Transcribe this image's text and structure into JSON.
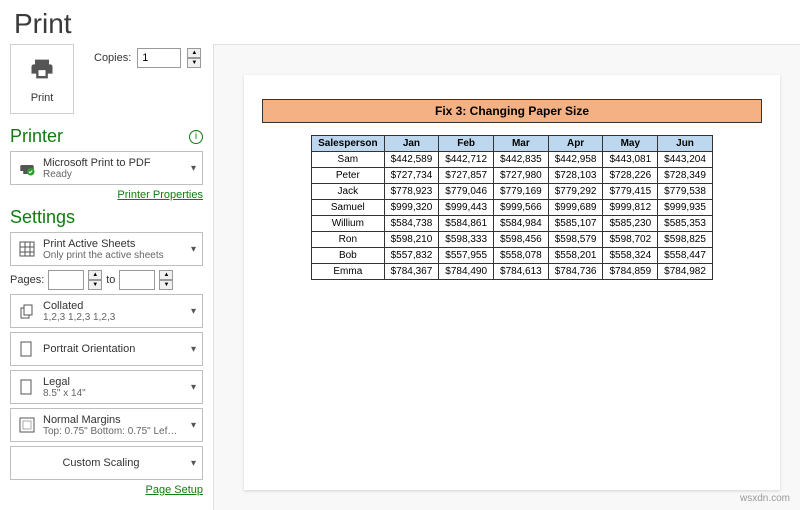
{
  "header": {
    "title": "Print"
  },
  "printBtn": {
    "label": "Print"
  },
  "copies": {
    "label": "Copies:",
    "value": "1"
  },
  "printer": {
    "heading": "Printer",
    "name": "Microsoft Print to PDF",
    "status": "Ready",
    "propsLink": "Printer Properties"
  },
  "settings": {
    "heading": "Settings",
    "sheets": {
      "title": "Print Active Sheets",
      "sub": "Only print the active sheets"
    },
    "pages": {
      "label": "Pages:",
      "to": "to"
    },
    "collated": {
      "title": "Collated",
      "sub": "1,2,3   1,2,3   1,2,3"
    },
    "orientation": {
      "title": "Portrait Orientation"
    },
    "paper": {
      "title": "Legal",
      "sub": "8.5\" x 14\""
    },
    "margins": {
      "title": "Normal Margins",
      "sub": "Top: 0.75\" Bottom: 0.75\" Lef…"
    },
    "scaling": {
      "title": "Custom Scaling"
    },
    "setupLink": "Page Setup"
  },
  "preview": {
    "title": "Fix 3: Changing Paper Size",
    "columns": [
      "Salesperson",
      "Jan",
      "Feb",
      "Mar",
      "Apr",
      "May",
      "Jun"
    ],
    "rows": [
      [
        "Sam",
        "$442,589",
        "$442,712",
        "$442,835",
        "$442,958",
        "$443,081",
        "$443,204"
      ],
      [
        "Peter",
        "$727,734",
        "$727,857",
        "$727,980",
        "$728,103",
        "$728,226",
        "$728,349"
      ],
      [
        "Jack",
        "$778,923",
        "$779,046",
        "$779,169",
        "$779,292",
        "$779,415",
        "$779,538"
      ],
      [
        "Samuel",
        "$999,320",
        "$999,443",
        "$999,566",
        "$999,689",
        "$999,812",
        "$999,935"
      ],
      [
        "Willium",
        "$584,738",
        "$584,861",
        "$584,984",
        "$585,107",
        "$585,230",
        "$585,353"
      ],
      [
        "Ron",
        "$598,210",
        "$598,333",
        "$598,456",
        "$598,579",
        "$598,702",
        "$598,825"
      ],
      [
        "Bob",
        "$557,832",
        "$557,955",
        "$558,078",
        "$558,201",
        "$558,324",
        "$558,447"
      ],
      [
        "Emma",
        "$784,367",
        "$784,490",
        "$784,613",
        "$784,736",
        "$784,859",
        "$784,982"
      ]
    ],
    "title_bg": "#f4b183",
    "header_bg": "#bdd7ee",
    "border_color": "#333333"
  },
  "watermark": "wsxdn.com"
}
